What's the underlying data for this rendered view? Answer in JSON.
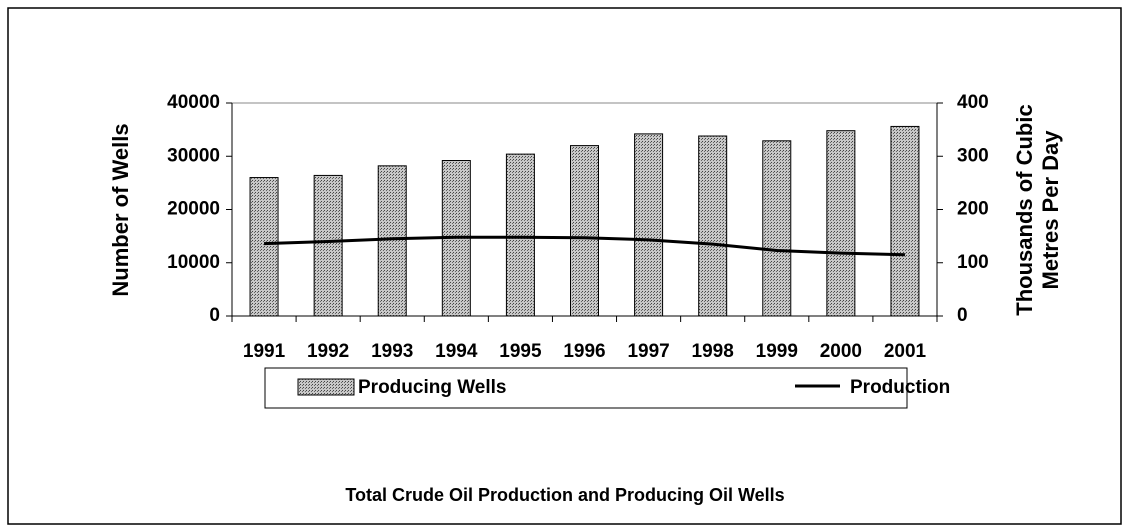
{
  "chart_data": {
    "type": "bar",
    "title": "Total Crude Oil Production and Producing Oil Wells",
    "ylabel": "Number of Wells",
    "y2label": [
      "Thousands of Cubic",
      "Metres Per Day"
    ],
    "categories": [
      "1991",
      "1992",
      "1993",
      "1994",
      "1995",
      "1996",
      "1997",
      "1998",
      "1999",
      "2000",
      "2001"
    ],
    "series": [
      {
        "name": "Producing Wells",
        "color": "#9a9a9a",
        "axis": "y",
        "values": [
          26000,
          26400,
          28200,
          29200,
          30400,
          32000,
          34200,
          33800,
          32900,
          34800,
          35600
        ]
      },
      {
        "name": "Production",
        "color": "#000000",
        "type": "line",
        "axis": "y2",
        "values": [
          136,
          140,
          145,
          148,
          148,
          147,
          143,
          135,
          123,
          118,
          115
        ]
      }
    ],
    "ylim": [
      0,
      40000
    ],
    "yticks": [
      0,
      10000,
      20000,
      30000,
      40000
    ],
    "y2lim": [
      0,
      400
    ],
    "y2ticks": [
      0,
      100,
      200,
      300,
      400
    ],
    "grid": false
  }
}
